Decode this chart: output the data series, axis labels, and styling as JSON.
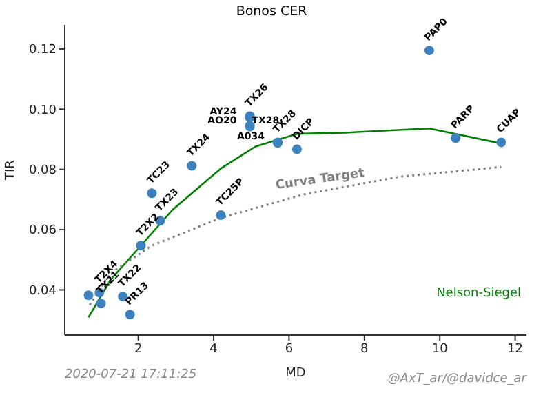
{
  "chart_data": {
    "type": "scatter",
    "title": "Bonos CER",
    "xlabel": "MD",
    "ylabel": "TIR",
    "xlim": [
      0.05,
      12.3
    ],
    "xticks": [
      2,
      4,
      6,
      8,
      10,
      12
    ],
    "ylim": [
      0.025,
      0.128
    ],
    "yticks": [
      0.04,
      0.06,
      0.08,
      {
        "value": 0.1,
        "label": "0.10"
      },
      0.12
    ],
    "grid": false,
    "legend": false,
    "series": [
      {
        "color": "#3b82bf",
        "marker": "circle",
        "x": [
          9.72,
          10.42,
          11.63,
          4.96,
          4.96,
          4.96,
          4.96,
          5.7,
          5.7,
          6.21,
          3.42,
          2.36,
          4.19,
          2.58,
          2.07,
          0.68,
          0.97,
          1.01,
          1.59,
          1.78
        ],
        "values": [
          0.1195,
          0.0904,
          0.089,
          0.0977,
          0.0972,
          0.0945,
          0.0942,
          0.089,
          0.0888,
          0.0867,
          0.0812,
          0.0721,
          0.0648,
          0.063,
          0.0547,
          0.0382,
          0.0391,
          0.0355,
          0.0378,
          0.0318
        ],
        "value_labels": [
          "PAP0",
          "PARP",
          "CUAP",
          "TX26",
          "AY24",
          "TX28",
          "AO20",
          "TX28",
          "A034",
          "DICP",
          "TX24",
          "TC23",
          "TC25P",
          "TX23",
          "T2X2",
          null,
          "T2X4",
          "TX21",
          "TX22",
          "PR13"
        ]
      },
      {
        "type": "line",
        "name": "Nelson-Siegel",
        "color": "#008000",
        "line_style": "solid",
        "x": [
          0.68,
          1.26,
          2.07,
          2.91,
          4.19,
          5.11,
          6.21,
          7.49,
          9.72,
          11.63
        ],
        "values": [
          0.0309,
          0.0433,
          0.0547,
          0.0666,
          0.0803,
          0.0876,
          0.0918,
          0.0922,
          0.0936,
          0.0886
        ]
      },
      {
        "type": "line",
        "name": "Curva Target",
        "color": "#808080",
        "line_style": "dotted",
        "x": [
          0.71,
          1.26,
          2.36,
          4.19,
          6.39,
          8.95,
          11.63
        ],
        "values": [
          0.035,
          0.0455,
          0.0547,
          0.0639,
          0.0717,
          0.0776,
          0.0808
        ]
      }
    ],
    "annotations": [
      "2020-07-21 17:11:25",
      "@AxT_ar/@davidce_ar"
    ]
  }
}
